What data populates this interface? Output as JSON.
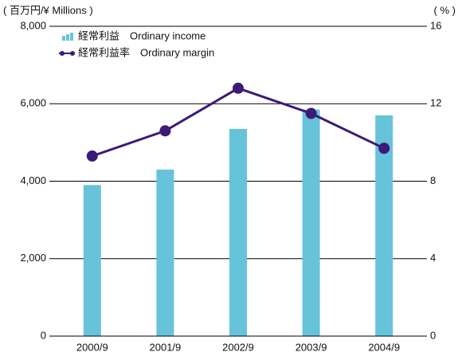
{
  "chart_data": {
    "type": "bar_line",
    "y_axis_label": "( 百万円/¥ Millions )",
    "y2_axis_label": "( % )",
    "categories": [
      "2000/9",
      "2001/9",
      "2002/9",
      "2003/9",
      "2004/9"
    ],
    "series": [
      {
        "name": "経常利益　Ordinary income",
        "type": "bar",
        "color": "#66c3d9",
        "values": [
          3900,
          4300,
          5350,
          5850,
          5700
        ]
      },
      {
        "name": "経常利益率　Ordinary margin",
        "type": "line",
        "axis": "y2",
        "color": "#3d1a78",
        "values": [
          9.3,
          10.6,
          12.8,
          11.5,
          9.7
        ]
      }
    ],
    "ylim": [
      0,
      8000
    ],
    "yticks": [
      0,
      {
        "value": 2000,
        "label": "2,000"
      },
      {
        "value": 4000,
        "label": "4,000"
      },
      {
        "value": 6000,
        "label": "6,000"
      },
      {
        "value": 8000,
        "label": "8,000"
      }
    ],
    "y2lim": [
      0,
      16
    ],
    "y2ticks": [
      0,
      4,
      8,
      12,
      16
    ],
    "grid": true,
    "legend": "top-left"
  }
}
